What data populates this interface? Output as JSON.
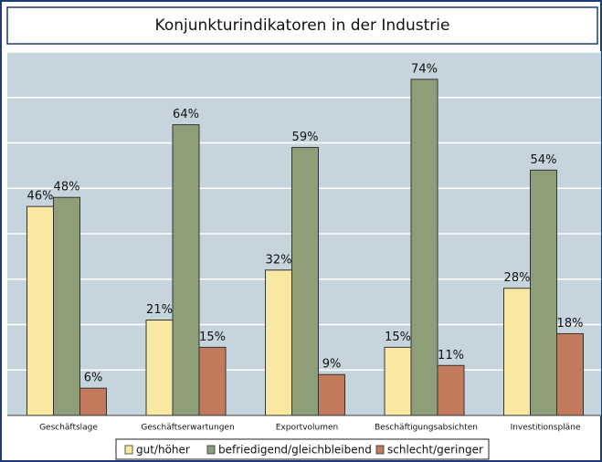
{
  "chart_data": {
    "type": "bar",
    "title": "Konjunkturindikatoren in der Industrie",
    "categories": [
      "Geschäftslage",
      "Geschäftserwartungen",
      "Exportvolumen",
      "Beschäftigungsabsichten",
      "Investitionspläne"
    ],
    "series": [
      {
        "name": "gut/höher",
        "color": "#f8e8a2",
        "values": [
          46,
          21,
          32,
          15,
          28
        ],
        "value_labels": [
          "46%",
          "21%",
          "32%",
          "15%",
          "28%"
        ]
      },
      {
        "name": "befriedigend/gleichbleibend",
        "color": "#8d9e78",
        "values": [
          48,
          64,
          59,
          74,
          54
        ],
        "value_labels": [
          "48%",
          "64%",
          "59%",
          "74%",
          "54%"
        ]
      },
      {
        "name": "schlecht/geringer",
        "color": "#c17b5c",
        "values": [
          6,
          15,
          9,
          11,
          18
        ],
        "value_labels": [
          "6%",
          "15%",
          "9%",
          "11%",
          "18%"
        ]
      }
    ],
    "ylim": [
      0,
      80
    ],
    "yticks": [
      0,
      10,
      20,
      30,
      40,
      50,
      60,
      70,
      80
    ],
    "grid": true,
    "legend": "bottom"
  }
}
